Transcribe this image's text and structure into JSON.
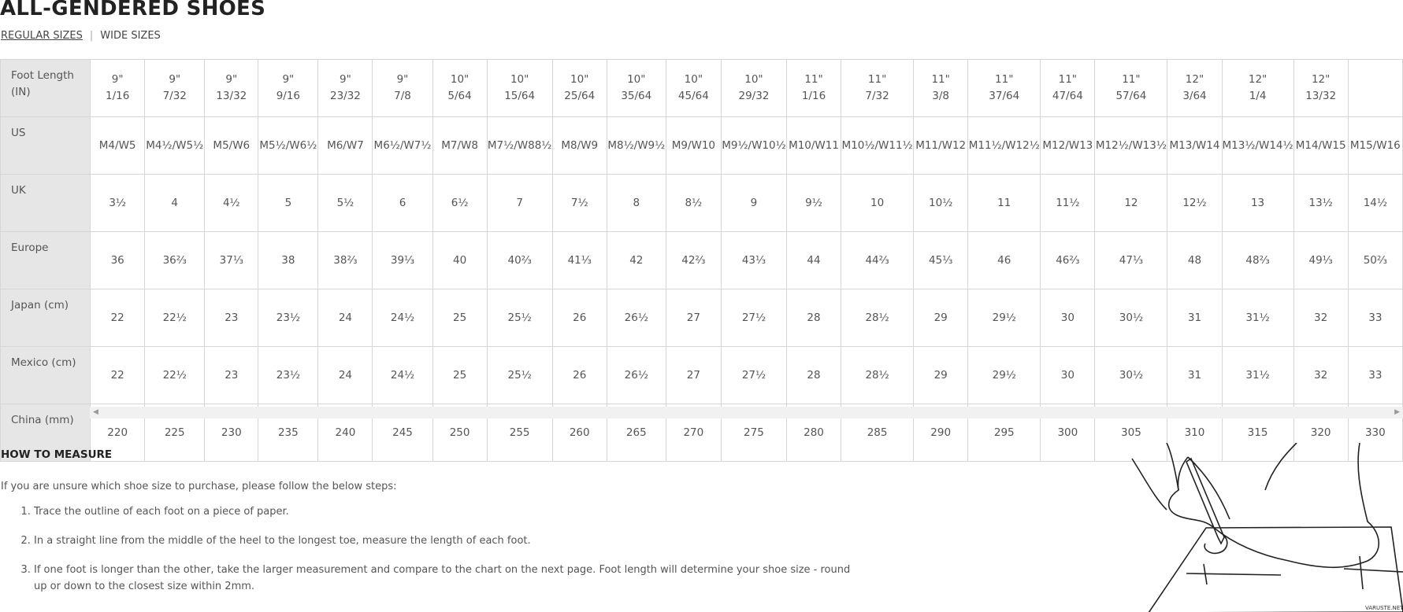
{
  "header": {
    "title": "ALL-GENDERED SHOES",
    "tabs": [
      "REGULAR SIZES",
      "WIDE SIZES"
    ]
  },
  "table": {
    "rows": [
      {
        "label": "Foot Length (IN)",
        "cells": [
          [
            "9\"",
            "1/16"
          ],
          [
            "9\"",
            "7/32"
          ],
          [
            "9\"",
            "13/32"
          ],
          [
            "9\"",
            "9/16"
          ],
          [
            "9\"",
            "23/32"
          ],
          [
            "9\"",
            "7/8"
          ],
          [
            "10\"",
            "5/64"
          ],
          [
            "10\"",
            "15/64"
          ],
          [
            "10\"",
            "25/64"
          ],
          [
            "10\"",
            "35/64"
          ],
          [
            "10\"",
            "45/64"
          ],
          [
            "10\"",
            "29/32"
          ],
          [
            "11\"",
            "1/16"
          ],
          [
            "11\"",
            "7/32"
          ],
          [
            "11\"",
            "3/8"
          ],
          [
            "11\"",
            "37/64"
          ],
          [
            "11\"",
            "47/64"
          ],
          [
            "11\"",
            "57/64"
          ],
          [
            "12\"",
            "3/64"
          ],
          [
            "12\"",
            "1/4"
          ],
          [
            "12\"",
            "13/32"
          ],
          null
        ]
      },
      {
        "label": "US",
        "cells": [
          "M4/W5",
          "M4½/W5½",
          "M5/W6",
          "M5½/W6½",
          "M6/W7",
          "M6½/W7½",
          "M7/W8",
          "M7½/W88½",
          "M8/W9",
          "M8½/W9½",
          "M9/W10",
          "M9½/W10½",
          "M10/W11",
          "M10½/W11½",
          "M11/W12",
          "M11½/W12½",
          "M12/W13",
          "M12½/W13½",
          "M13/W14",
          "M13½/W14½",
          "M14/W15",
          "M15/W16"
        ]
      },
      {
        "label": "UK",
        "cells": [
          "3½",
          "4",
          "4½",
          "5",
          "5½",
          "6",
          "6½",
          "7",
          "7½",
          "8",
          "8½",
          "9",
          "9½",
          "10",
          "10½",
          "11",
          "11½",
          "12",
          "12½",
          "13",
          "13½",
          "14½"
        ]
      },
      {
        "label": "Europe",
        "cells": [
          "36",
          "36⅔",
          "37⅓",
          "38",
          "38⅔",
          "39⅓",
          "40",
          "40⅔",
          "41⅓",
          "42",
          "42⅔",
          "43⅓",
          "44",
          "44⅔",
          "45⅓",
          "46",
          "46⅔",
          "47⅓",
          "48",
          "48⅔",
          "49⅓",
          "50⅔"
        ]
      },
      {
        "label": "Japan (cm)",
        "cells": [
          "22",
          "22½",
          "23",
          "23½",
          "24",
          "24½",
          "25",
          "25½",
          "26",
          "26½",
          "27",
          "27½",
          "28",
          "28½",
          "29",
          "29½",
          "30",
          "30½",
          "31",
          "31½",
          "32",
          "33"
        ]
      },
      {
        "label": "Mexico (cm)",
        "cells": [
          "22",
          "22½",
          "23",
          "23½",
          "24",
          "24½",
          "25",
          "25½",
          "26",
          "26½",
          "27",
          "27½",
          "28",
          "28½",
          "29",
          "29½",
          "30",
          "30½",
          "31",
          "31½",
          "32",
          "33"
        ]
      },
      {
        "label": "China (mm)",
        "cells": [
          220,
          225,
          230,
          235,
          240,
          245,
          250,
          255,
          260,
          265,
          270,
          275,
          280,
          285,
          290,
          295,
          300,
          305,
          310,
          315,
          320,
          330
        ]
      }
    ]
  },
  "measure": {
    "title": "HOW TO MEASURE",
    "intro": "If you are unsure which shoe size to purchase, please follow the below steps:",
    "steps": [
      "Trace the outline of each foot on a piece of paper.",
      "In a straight line from the middle of the heel to the longest toe, measure the length of each foot.",
      "If one foot is longer than the other, take the larger measurement and compare to the chart on the next page. Foot length will determine your shoe size - round up or down to the closest size within 2mm."
    ],
    "watermark": "VARUSTE.NET"
  }
}
